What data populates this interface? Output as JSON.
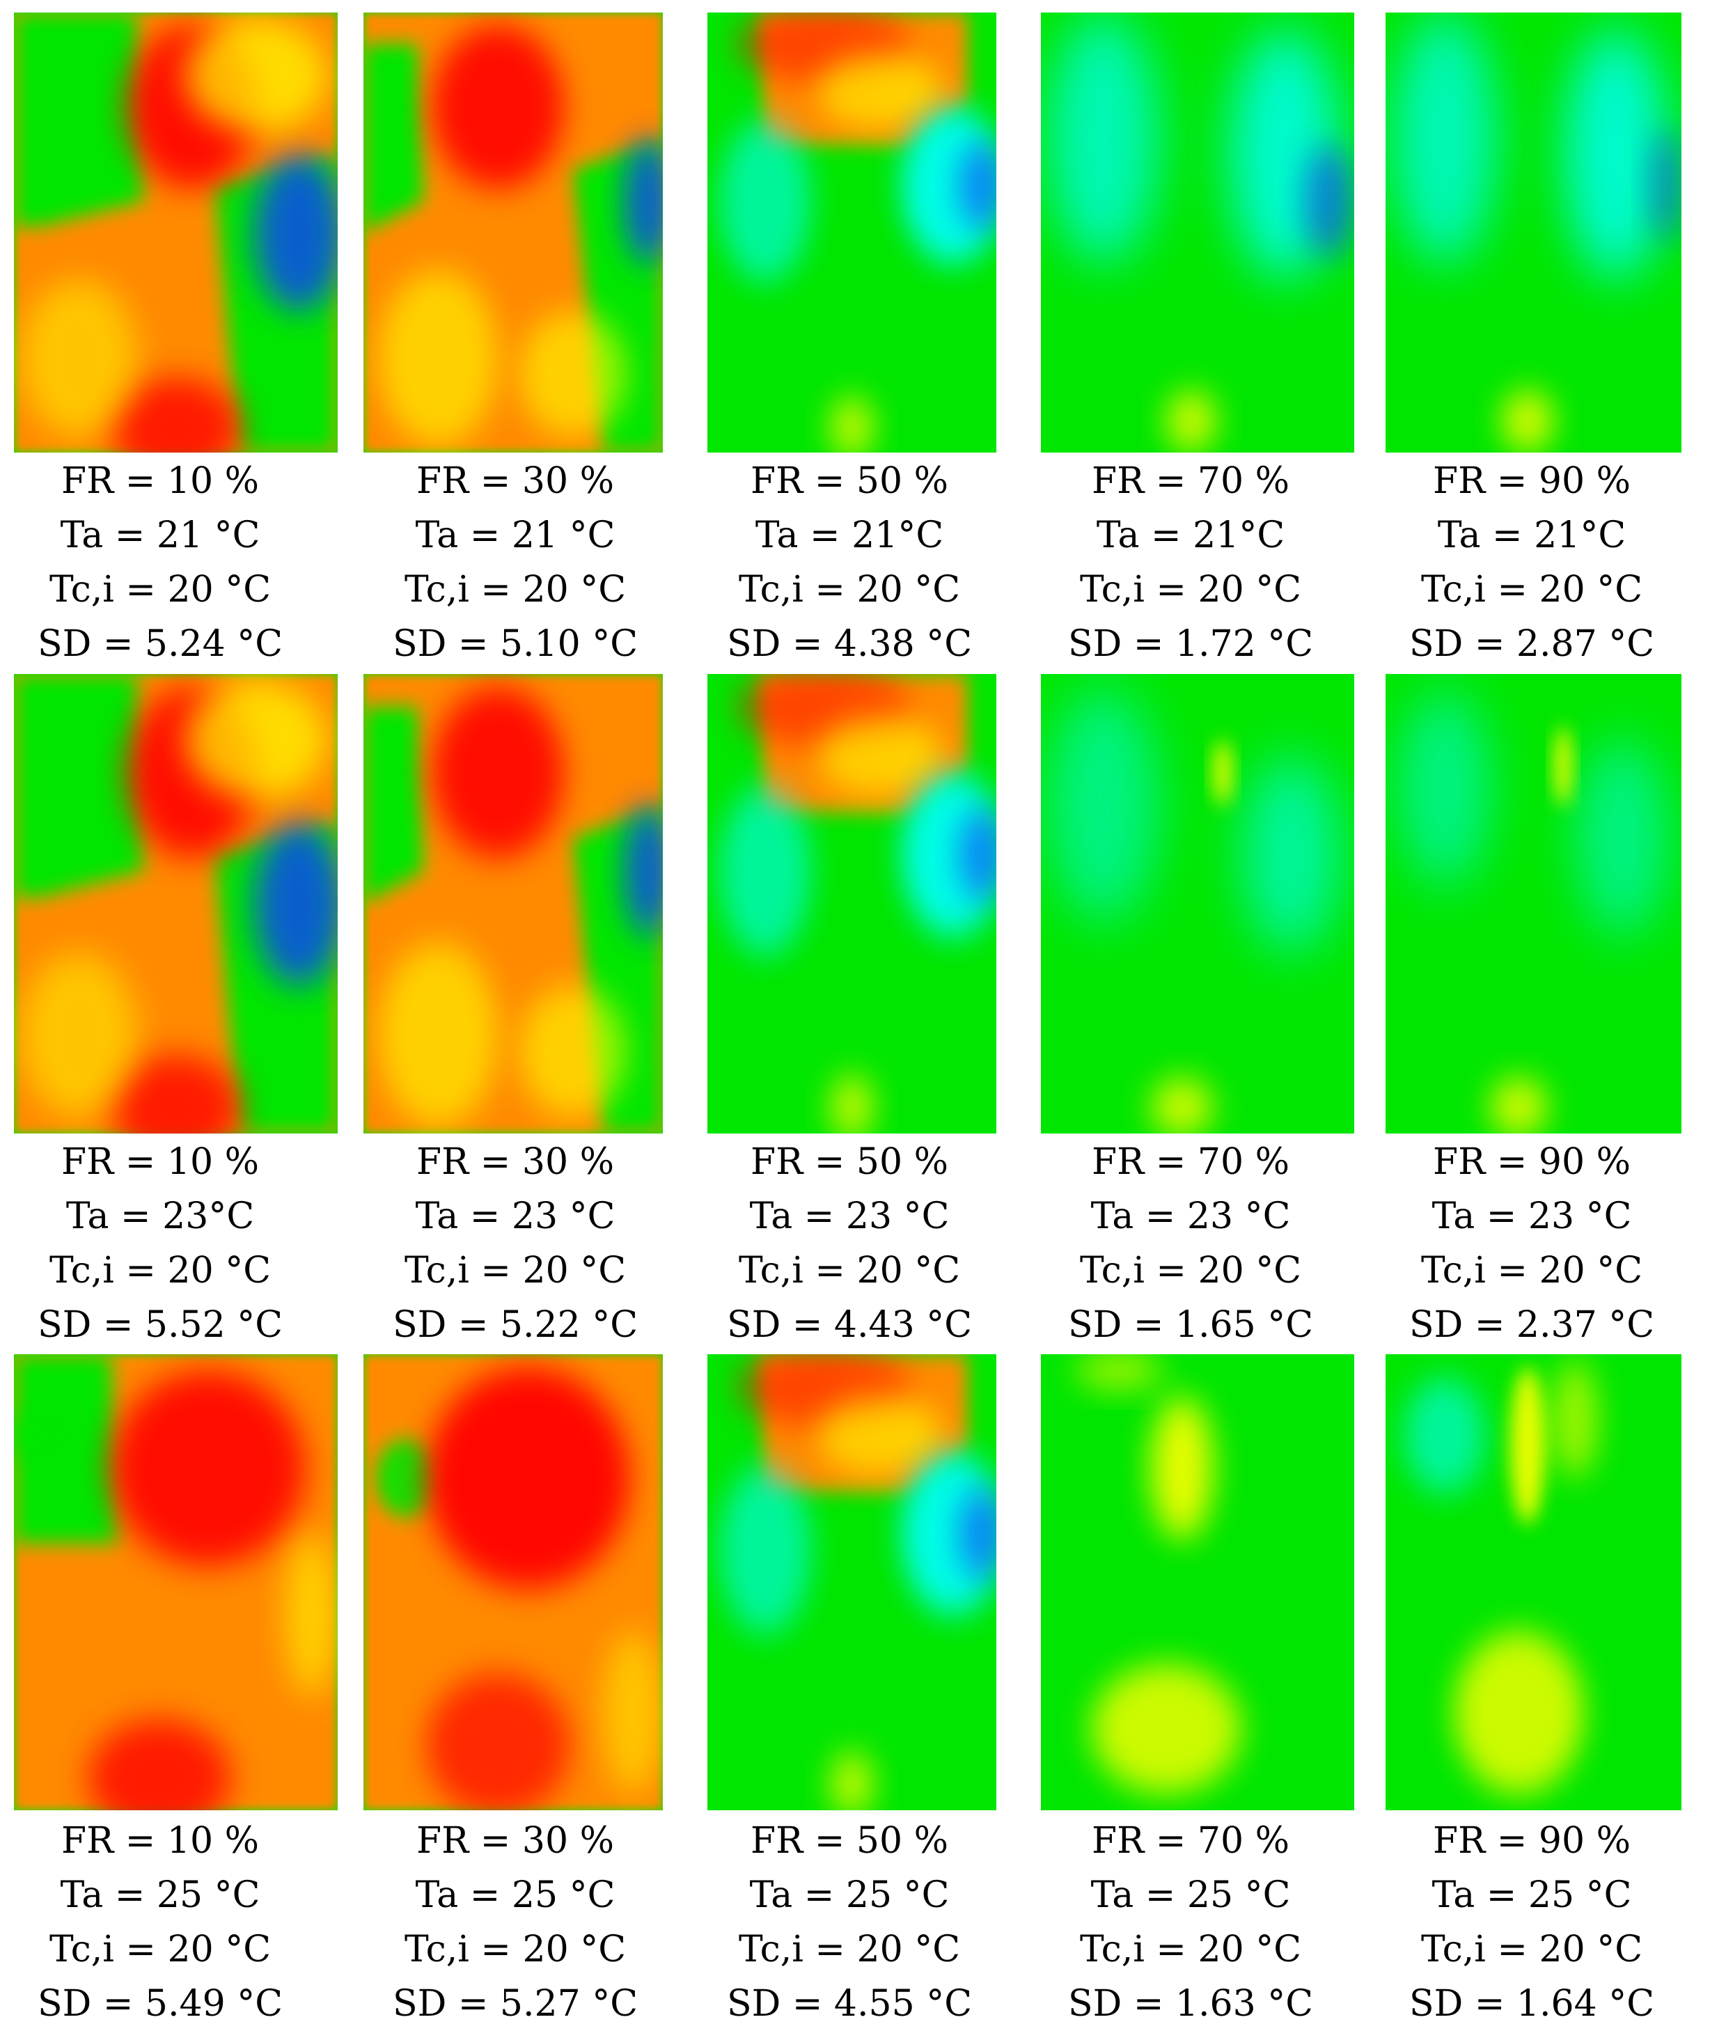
{
  "chart_data": {
    "type": "heatmap",
    "colormap": [
      "#0a3cff",
      "#00ffff",
      "#00e600",
      "#ffff00",
      "#ff8a00",
      "#ff0000"
    ],
    "panels": [
      {
        "fr": "FR = 10 %",
        "ta": "Ta = 21 °C",
        "tc": "Tc,i = 20 °C",
        "sd": "SD = 5.24 °C",
        "variant": "fr10"
      },
      {
        "fr": "FR = 30 %",
        "ta": "Ta = 21 °C",
        "tc": "Tc,i = 20 °C",
        "sd": "SD = 5.10 °C",
        "variant": "fr30"
      },
      {
        "fr": "FR = 50 %",
        "ta": "Ta = 21°C",
        "tc": "Tc,i = 20 °C",
        "sd": "SD = 4.38 °C",
        "variant": "fr50"
      },
      {
        "fr": "FR = 70 %",
        "ta": "Ta = 21°C",
        "tc": "Tc,i = 20 °C",
        "sd": "SD = 1.72 °C",
        "variant": "fr70a"
      },
      {
        "fr": "FR = 90 %",
        "ta": "Ta = 21°C",
        "tc": "Tc,i = 20 °C",
        "sd": "SD = 2.87 °C",
        "variant": "fr90a"
      },
      {
        "fr": "FR = 10 %",
        "ta": "Ta = 23°C",
        "tc": "Tc,i = 20 °C",
        "sd": "SD = 5.52 °C",
        "variant": "fr10"
      },
      {
        "fr": "FR = 30 %",
        "ta": "Ta = 23 °C",
        "tc": "Tc,i = 20 °C",
        "sd": "SD = 5.22 °C",
        "variant": "fr30"
      },
      {
        "fr": "FR = 50 %",
        "ta": "Ta = 23 °C",
        "tc": "Tc,i = 20 °C",
        "sd": "SD = 4.43 °C",
        "variant": "fr50"
      },
      {
        "fr": "FR = 70 %",
        "ta": "Ta = 23 °C",
        "tc": "Tc,i = 20 °C",
        "sd": "SD = 1.65 °C",
        "variant": "fr70b"
      },
      {
        "fr": "FR = 90 %",
        "ta": "Ta = 23 °C",
        "tc": "Tc,i = 20 °C",
        "sd": "SD = 2.37 °C",
        "variant": "fr90b"
      },
      {
        "fr": "FR = 10 %",
        "ta": "Ta = 25 °C",
        "tc": "Tc,i = 20 °C",
        "sd": "SD = 5.49 °C",
        "variant": "fr10hot"
      },
      {
        "fr": "FR = 30 %",
        "ta": "Ta = 25 °C",
        "tc": "Tc,i = 20 °C",
        "sd": "SD = 5.27 °C",
        "variant": "fr30hot"
      },
      {
        "fr": "FR = 50 %",
        "ta": "Ta = 25 °C",
        "tc": "Tc,i = 20 °C",
        "sd": "SD = 4.55 °C",
        "variant": "fr50"
      },
      {
        "fr": "FR = 70 %",
        "ta": "Ta = 25 °C",
        "tc": "Tc,i = 20 °C",
        "sd": "SD = 1.63 °C",
        "variant": "fr70c"
      },
      {
        "fr": "FR = 90 %",
        "ta": "Ta = 25 °C",
        "tc": "Tc,i = 20 °C",
        "sd": "SD = 1.64 °C",
        "variant": "fr90c"
      }
    ]
  }
}
